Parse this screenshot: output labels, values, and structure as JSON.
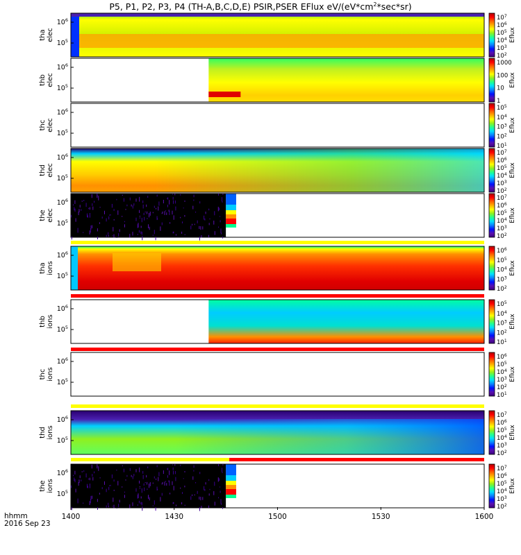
{
  "title": {
    "part1": "P5, P1, P2, P3, P4 (TH-A,B,C,D,E) PSIR,PSER EFlux eV/(eV*cm",
    "sup": "2",
    "part2": "*sec*sr)"
  },
  "footer": {
    "time_format": "hhmm",
    "date": "2016 Sep 23"
  },
  "chart_data": {
    "type": "heatmap",
    "x_axis": {
      "range": [
        "1400",
        "1600"
      ],
      "ticks": [
        "1400",
        "1430",
        "1500",
        "1530",
        "1600"
      ]
    },
    "panels": [
      {
        "id": "tha_elec",
        "ylabel": [
          "tha",
          "elec"
        ],
        "yticks": [
          {
            "base": "10",
            "exp": "6"
          },
          {
            "base": "10",
            "exp": "5"
          }
        ],
        "cbar_label": "Eflux",
        "cbar_ticks": [
          {
            "base": "10",
            "exp": "7"
          },
          {
            "base": "10",
            "exp": "6"
          },
          {
            "base": "10",
            "exp": "5"
          },
          {
            "base": "10",
            "exp": "4"
          },
          {
            "base": "10",
            "exp": "3"
          },
          {
            "base": "10",
            "exp": "2"
          }
        ],
        "data_start": "1400",
        "data_end": "1600"
      },
      {
        "id": "thb_elec",
        "ylabel": [
          "thb",
          "elec"
        ],
        "yticks": [
          {
            "base": "10",
            "exp": "6"
          },
          {
            "base": "10",
            "exp": "5"
          }
        ],
        "cbar_label": "Eflux",
        "cbar_ticks": [
          {
            "base": "",
            "exp": "",
            "text": "1000"
          },
          {
            "base": "",
            "exp": "",
            "text": "100"
          },
          {
            "base": "",
            "exp": "",
            "text": "10"
          },
          {
            "base": "",
            "exp": "",
            "text": "1"
          }
        ],
        "data_start": "1440",
        "data_end": "1600"
      },
      {
        "id": "thc_elec",
        "ylabel": [
          "thc",
          "elec"
        ],
        "yticks": [
          {
            "base": "10",
            "exp": "6"
          },
          {
            "base": "10",
            "exp": "5"
          }
        ],
        "cbar_label": "Eflux",
        "cbar_ticks": [
          {
            "base": "10",
            "exp": "5"
          },
          {
            "base": "10",
            "exp": "4"
          },
          {
            "base": "10",
            "exp": "3"
          },
          {
            "base": "10",
            "exp": "2"
          },
          {
            "base": "10",
            "exp": "1"
          }
        ],
        "data_start": null,
        "data_end": null
      },
      {
        "id": "thd_elec",
        "ylabel": [
          "thd",
          "elec"
        ],
        "yticks": [
          {
            "base": "10",
            "exp": "6"
          },
          {
            "base": "10",
            "exp": "5"
          }
        ],
        "cbar_label": "Eflux",
        "cbar_ticks": [
          {
            "base": "10",
            "exp": "7"
          },
          {
            "base": "10",
            "exp": "6"
          },
          {
            "base": "10",
            "exp": "5"
          },
          {
            "base": "10",
            "exp": "4"
          },
          {
            "base": "10",
            "exp": "3"
          },
          {
            "base": "10",
            "exp": "2"
          }
        ],
        "data_start": "1400",
        "data_end": "1600"
      },
      {
        "id": "the_elec",
        "ylabel": [
          "the",
          "elec"
        ],
        "yticks": [
          {
            "base": "10",
            "exp": "6"
          },
          {
            "base": "10",
            "exp": "5"
          }
        ],
        "cbar_label": "Eflux",
        "cbar_ticks": [
          {
            "base": "10",
            "exp": "7"
          },
          {
            "base": "10",
            "exp": "6"
          },
          {
            "base": "10",
            "exp": "5"
          },
          {
            "base": "10",
            "exp": "4"
          },
          {
            "base": "10",
            "exp": "3"
          },
          {
            "base": "10",
            "exp": "2"
          }
        ],
        "data_start": "1400",
        "data_end": "1448"
      },
      {
        "id": "tha_ions",
        "ylabel": [
          "tha",
          "ions"
        ],
        "yticks": [
          {
            "base": "10",
            "exp": "6"
          },
          {
            "base": "10",
            "exp": "5"
          }
        ],
        "cbar_label": "Eflux",
        "cbar_ticks": [
          {
            "base": "10",
            "exp": "6"
          },
          {
            "base": "10",
            "exp": "5"
          },
          {
            "base": "10",
            "exp": "4"
          },
          {
            "base": "10",
            "exp": "3"
          },
          {
            "base": "10",
            "exp": "2"
          }
        ],
        "data_start": "1400",
        "data_end": "1600"
      },
      {
        "id": "thb_ions",
        "ylabel": [
          "thb",
          "ions"
        ],
        "yticks": [
          {
            "base": "10",
            "exp": "6"
          },
          {
            "base": "10",
            "exp": "5"
          }
        ],
        "cbar_label": "Eflux",
        "cbar_ticks": [
          {
            "base": "10",
            "exp": "5"
          },
          {
            "base": "10",
            "exp": "4"
          },
          {
            "base": "10",
            "exp": "3"
          },
          {
            "base": "10",
            "exp": "2"
          },
          {
            "base": "10",
            "exp": "1"
          }
        ],
        "data_start": "1440",
        "data_end": "1600"
      },
      {
        "id": "thc_ions",
        "ylabel": [
          "thc",
          "ions"
        ],
        "yticks": [
          {
            "base": "10",
            "exp": "6"
          },
          {
            "base": "10",
            "exp": "5"
          }
        ],
        "cbar_label": "Eflux",
        "cbar_ticks": [
          {
            "base": "10",
            "exp": "6"
          },
          {
            "base": "10",
            "exp": "5"
          },
          {
            "base": "10",
            "exp": "4"
          },
          {
            "base": "10",
            "exp": "3"
          },
          {
            "base": "10",
            "exp": "2"
          },
          {
            "base": "10",
            "exp": "1"
          }
        ],
        "data_start": null,
        "data_end": null
      },
      {
        "id": "thd_ions",
        "ylabel": [
          "thd",
          "ions"
        ],
        "yticks": [
          {
            "base": "10",
            "exp": "6"
          },
          {
            "base": "10",
            "exp": "5"
          }
        ],
        "cbar_label": "Eflux",
        "cbar_ticks": [
          {
            "base": "10",
            "exp": "7"
          },
          {
            "base": "10",
            "exp": "6"
          },
          {
            "base": "10",
            "exp": "5"
          },
          {
            "base": "10",
            "exp": "4"
          },
          {
            "base": "10",
            "exp": "3"
          },
          {
            "base": "10",
            "exp": "2"
          }
        ],
        "data_start": "1400",
        "data_end": "1600"
      },
      {
        "id": "the_ions",
        "ylabel": [
          "the",
          "ions"
        ],
        "yticks": [
          {
            "base": "10",
            "exp": "6"
          },
          {
            "base": "10",
            "exp": "5"
          }
        ],
        "cbar_label": "Eflux",
        "cbar_ticks": [
          {
            "base": "10",
            "exp": "7"
          },
          {
            "base": "10",
            "exp": "6"
          },
          {
            "base": "10",
            "exp": "5"
          },
          {
            "base": "10",
            "exp": "4"
          },
          {
            "base": "10",
            "exp": "3"
          },
          {
            "base": "10",
            "exp": "2"
          }
        ],
        "data_start": "1400",
        "data_end": "1448"
      }
    ],
    "colorscale": [
      "#3a007a",
      "#5a10b0",
      "#0010ff",
      "#0a80ff",
      "#00dfff",
      "#22ff90",
      "#90f020",
      "#ffff00",
      "#ffb000",
      "#ff6000",
      "#ff0000",
      "#b00000"
    ]
  }
}
